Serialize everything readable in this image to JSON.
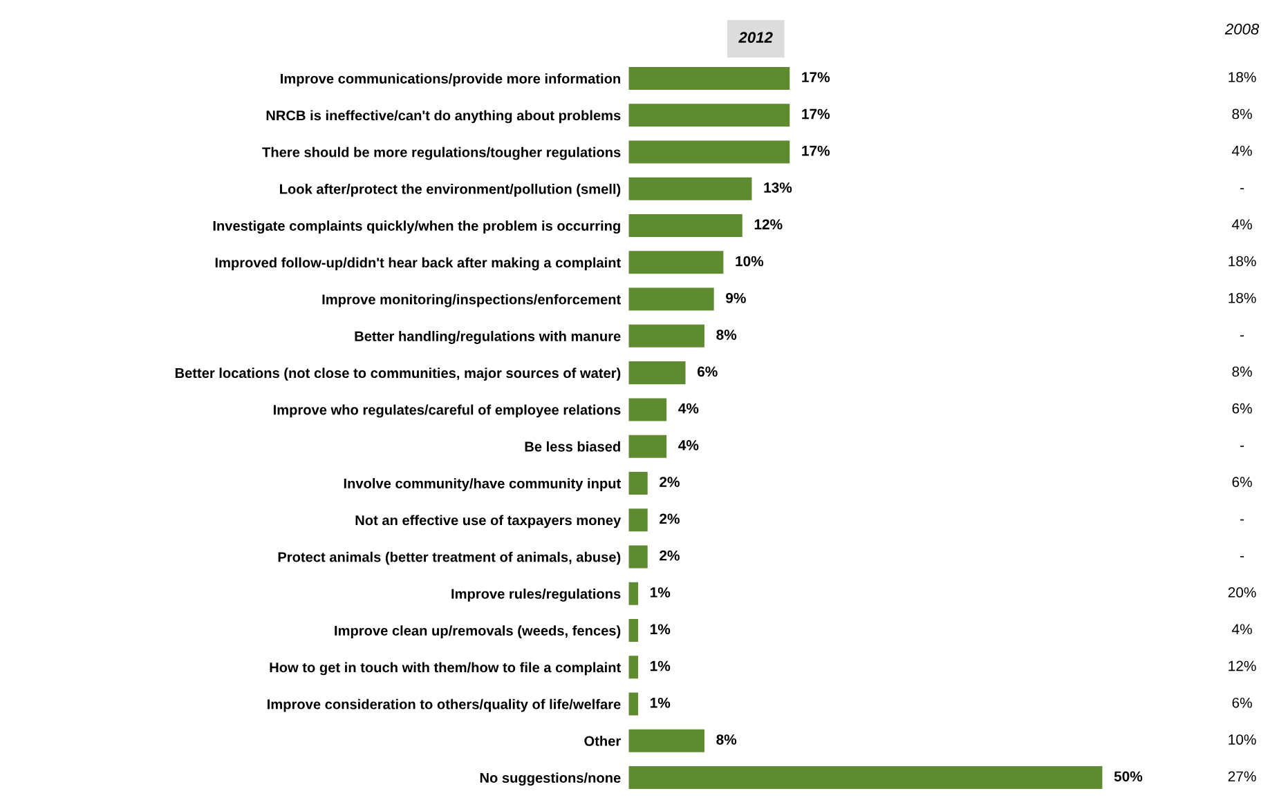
{
  "chart_data": {
    "type": "bar",
    "orientation": "horizontal",
    "title": "2012",
    "categories": [
      "Improve communications/provide more information",
      "NRCB is ineffective/can't do anything about problems",
      "There should be more regulations/tougher regulations",
      "Look after/protect the environment/pollution (smell)",
      "Investigate complaints quickly/when the problem is occurring",
      "Improved follow-up/didn't hear back after making a complaint",
      "Improve monitoring/inspections/enforcement",
      "Better handling/regulations with manure",
      "Better locations (not close to communities, major sources of water)",
      "Improve who regulates/careful of employee relations",
      "Be less biased",
      "Involve community/have community input",
      "Not an effective use of taxpayers money",
      "Protect animals (better treatment of animals, abuse)",
      "Improve rules/regulations",
      "Improve clean up/removals (weeds, fences)",
      "How to get in touch with them/how to file a complaint",
      "Improve consideration to others/quality of life/welfare",
      "Other",
      "No suggestions/none"
    ],
    "values": [
      17,
      17,
      17,
      13,
      12,
      10,
      9,
      8,
      6,
      4,
      4,
      2,
      2,
      2,
      1,
      1,
      1,
      1,
      8,
      50
    ],
    "value_labels": [
      "17%",
      "17%",
      "17%",
      "13%",
      "12%",
      "10%",
      "9%",
      "8%",
      "6%",
      "4%",
      "4%",
      "2%",
      "2%",
      "2%",
      "1%",
      "1%",
      "1%",
      "1%",
      "8%",
      "50%"
    ],
    "color": "#5e8a30",
    "grid": false,
    "legend": false,
    "tick_labels": "y",
    "annotations": [
      "2008",
      "18%",
      "8%",
      "4%",
      "-",
      "4%",
      "18%",
      "18%",
      "-",
      "8%",
      "6%",
      "-",
      "6%",
      "-",
      "-",
      "20%",
      "4%",
      "12%",
      "6%",
      "10%",
      "27%"
    ]
  }
}
